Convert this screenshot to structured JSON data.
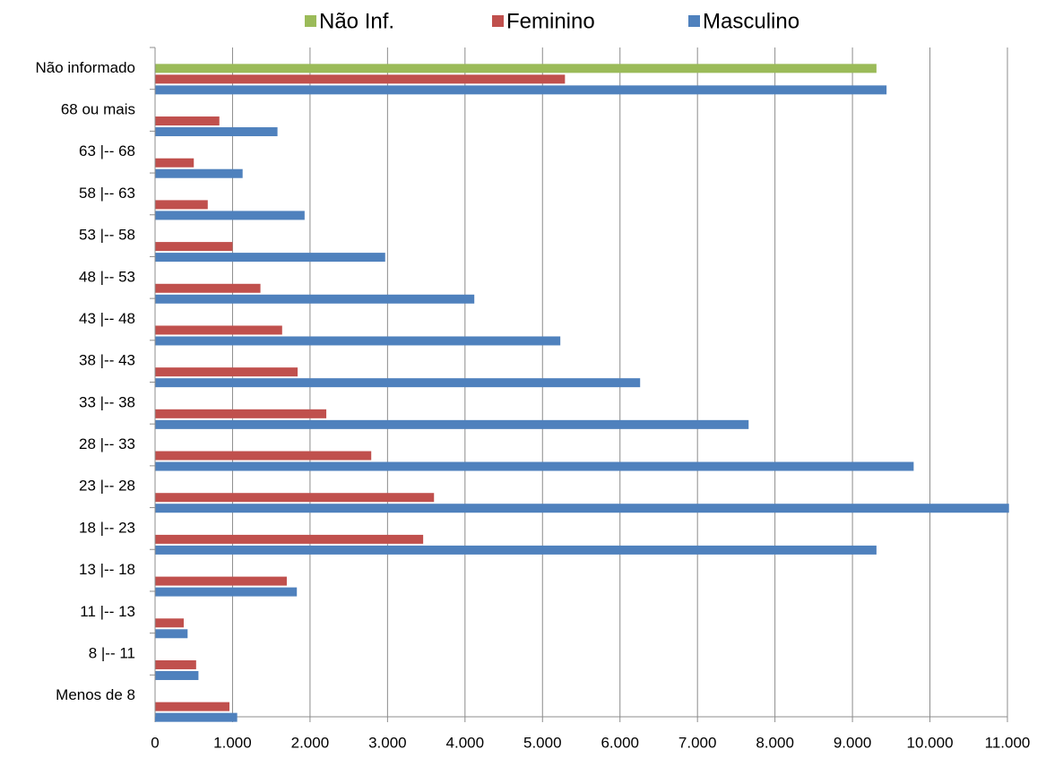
{
  "chart_data": {
    "type": "barh",
    "categories": [
      "Não informado",
      "68 ou mais",
      "63 |-- 68",
      "58 |-- 63",
      "53 |-- 58",
      "48 |-- 53",
      "43 |-- 48",
      "38 |-- 43",
      "33 |-- 38",
      "28 |-- 33",
      "23 |-- 28",
      "18 |-- 23",
      "13 |-- 18",
      "11 |-- 13",
      "8 |-- 11",
      "Menos de 8"
    ],
    "series": [
      {
        "name": "Não Inf.",
        "color": "#9bbb59",
        "values": [
          9310,
          null,
          null,
          null,
          null,
          null,
          null,
          null,
          null,
          null,
          null,
          null,
          null,
          null,
          null,
          null
        ]
      },
      {
        "name": "Feminino",
        "color": "#c0504d",
        "values": [
          5290,
          830,
          500,
          680,
          1000,
          1360,
          1640,
          1840,
          2210,
          2790,
          3600,
          3460,
          1700,
          370,
          530,
          960
        ]
      },
      {
        "name": "Masculino",
        "color": "#4f81bd",
        "values": [
          9440,
          1580,
          1130,
          1930,
          2970,
          4120,
          5230,
          6260,
          7660,
          9790,
          11020,
          9310,
          1830,
          420,
          560,
          1060
        ]
      }
    ],
    "xlim": [
      0,
      11000
    ],
    "xticks": [
      0,
      {
        "value": 1000,
        "label": "1.000"
      },
      {
        "value": 2000,
        "label": "2.000"
      },
      {
        "value": 3000,
        "label": "3.000"
      },
      {
        "value": 4000,
        "label": "4.000"
      },
      {
        "value": 5000,
        "label": "5.000"
      },
      {
        "value": 6000,
        "label": "6.000"
      },
      {
        "value": 7000,
        "label": "7.000"
      },
      {
        "value": 8000,
        "label": "8.000"
      },
      {
        "value": 9000,
        "label": "9.000"
      },
      {
        "value": 10000,
        "label": "10.000"
      },
      {
        "value": 11000,
        "label": "11.000"
      }
    ],
    "grid": true,
    "legend": "top"
  }
}
